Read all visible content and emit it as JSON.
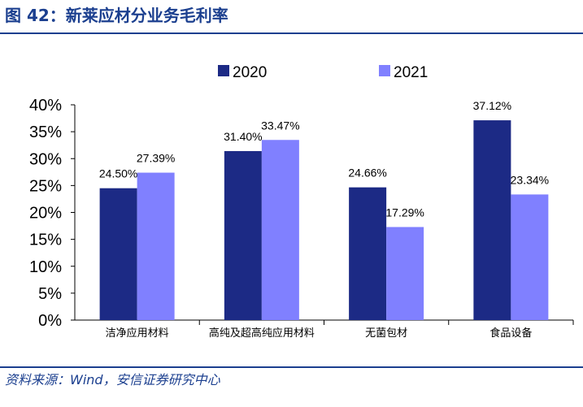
{
  "figure": {
    "title": "图 42：新莱应材分业务毛利率",
    "source": "资料来源：Wind，安信证券研究中心"
  },
  "chart_data": {
    "type": "bar",
    "categories": [
      "洁净应用材料",
      "高纯及超高纯应用材料",
      "无菌包材",
      "食品设备"
    ],
    "series": [
      {
        "name": "2020",
        "color": "#1c2a85",
        "values": [
          24.5,
          31.4,
          24.66,
          37.12
        ],
        "labels": [
          "24.50%",
          "31.40%",
          "24.66%",
          "37.12%"
        ]
      },
      {
        "name": "2021",
        "color": "#8080ff",
        "values": [
          27.39,
          33.47,
          17.29,
          23.34
        ],
        "labels": [
          "27.39%",
          "33.47%",
          "17.29%",
          "23.34%"
        ]
      }
    ],
    "ylim": [
      0,
      40
    ],
    "yticks": [
      "0%",
      "5%",
      "10%",
      "15%",
      "20%",
      "25%",
      "30%",
      "35%",
      "40%"
    ],
    "legend_position": "top-center",
    "grid": false
  }
}
